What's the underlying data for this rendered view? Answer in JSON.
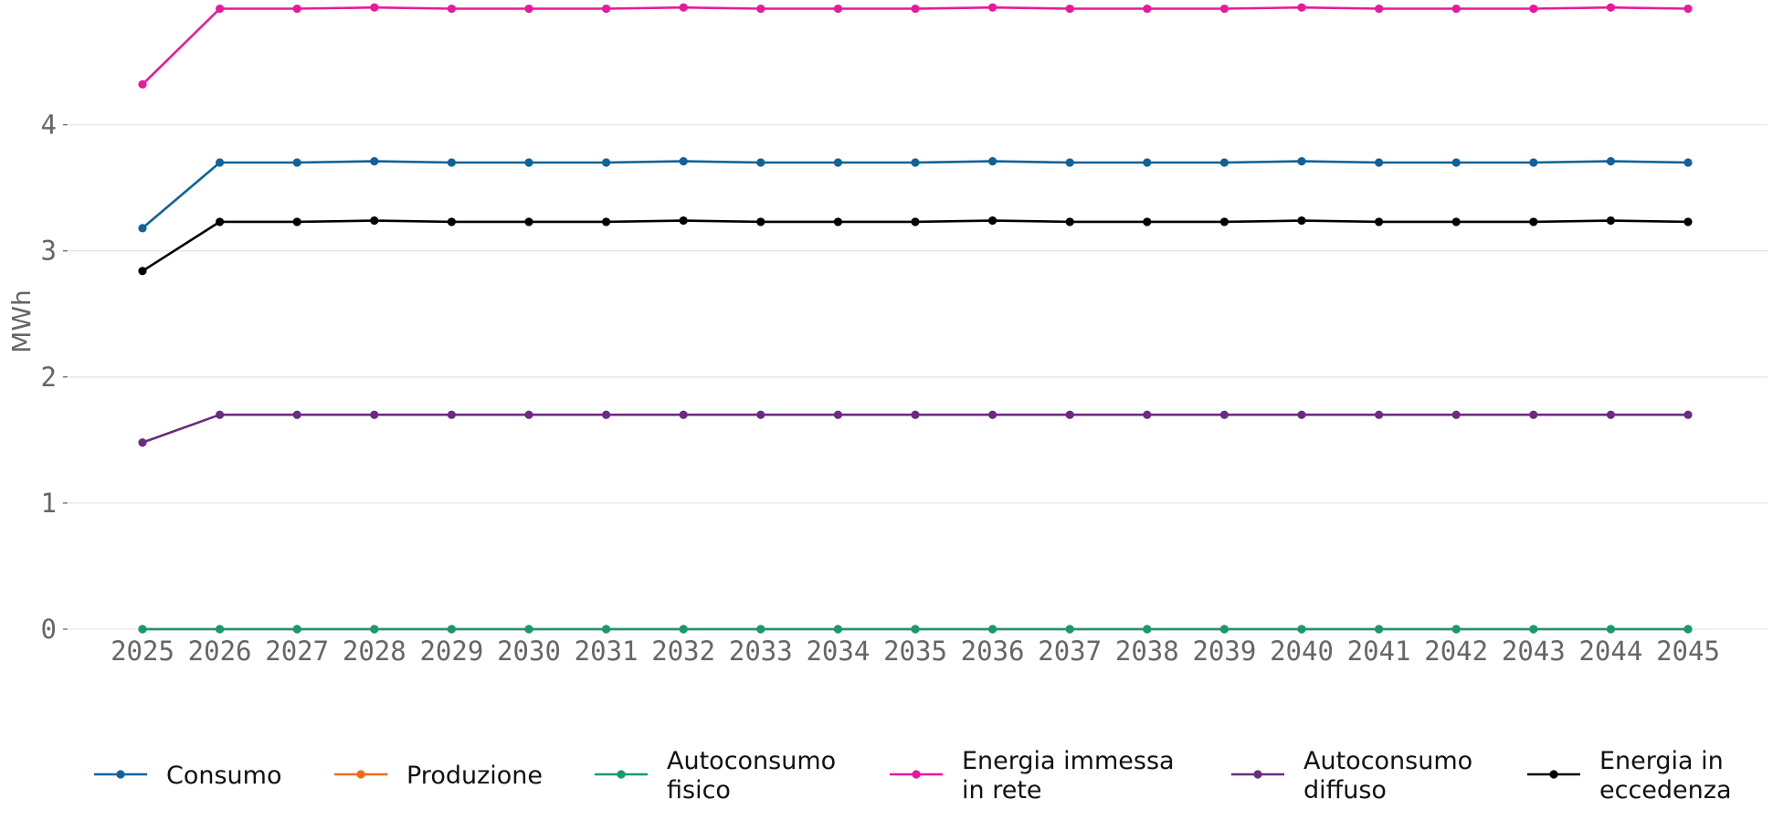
{
  "chart_data": {
    "type": "line",
    "title": "",
    "xlabel": "",
    "ylabel": "MWh",
    "ylim": [
      0,
      4.9
    ],
    "yticks": [
      0,
      1,
      2,
      3,
      4
    ],
    "grid": "horizontal",
    "legend_position": "bottom",
    "x": [
      "2025",
      "2026",
      "2027",
      "2028",
      "2029",
      "2030",
      "2031",
      "2032",
      "2033",
      "2034",
      "2035",
      "2036",
      "2037",
      "2038",
      "2039",
      "2040",
      "2041",
      "2042",
      "2043",
      "2044",
      "2045"
    ],
    "series": [
      {
        "name": "Consumo",
        "legend_lines": [
          "Consumo"
        ],
        "color": "#0f6398",
        "values": [
          3.18,
          3.7,
          3.7,
          3.71,
          3.7,
          3.7,
          3.7,
          3.71,
          3.7,
          3.7,
          3.7,
          3.71,
          3.7,
          3.7,
          3.7,
          3.71,
          3.7,
          3.7,
          3.7,
          3.71,
          3.7
        ]
      },
      {
        "name": "Produzione",
        "legend_lines": [
          "Produzione"
        ],
        "color": "#f26a1b",
        "values": [
          0,
          0,
          0,
          0,
          0,
          0,
          0,
          0,
          0,
          0,
          0,
          0,
          0,
          0,
          0,
          0,
          0,
          0,
          0,
          0,
          0
        ]
      },
      {
        "name": "Autoconsumo fisico",
        "legend_lines": [
          "Autoconsumo",
          "fisico"
        ],
        "color": "#159a72",
        "values": [
          0,
          0,
          0,
          0,
          0,
          0,
          0,
          0,
          0,
          0,
          0,
          0,
          0,
          0,
          0,
          0,
          0,
          0,
          0,
          0,
          0
        ]
      },
      {
        "name": "Energia immessa in rete",
        "legend_lines": [
          "Energia immessa",
          "in rete"
        ],
        "color": "#e8199d",
        "values": [
          4.32,
          4.92,
          4.92,
          4.93,
          4.92,
          4.92,
          4.92,
          4.93,
          4.92,
          4.92,
          4.92,
          4.93,
          4.92,
          4.92,
          4.92,
          4.93,
          4.92,
          4.92,
          4.92,
          4.93,
          4.92
        ]
      },
      {
        "name": "Autoconsumo diffuso",
        "legend_lines": [
          "Autoconsumo",
          "diffuso"
        ],
        "color": "#6a2c80",
        "values": [
          1.48,
          1.7,
          1.7,
          1.7,
          1.7,
          1.7,
          1.7,
          1.7,
          1.7,
          1.7,
          1.7,
          1.7,
          1.7,
          1.7,
          1.7,
          1.7,
          1.7,
          1.7,
          1.7,
          1.7,
          1.7
        ]
      },
      {
        "name": "Energia in eccedenza",
        "legend_lines": [
          "Energia in",
          "eccedenza"
        ],
        "color": "#000000",
        "values": [
          2.84,
          3.23,
          3.23,
          3.24,
          3.23,
          3.23,
          3.23,
          3.24,
          3.23,
          3.23,
          3.23,
          3.24,
          3.23,
          3.23,
          3.23,
          3.24,
          3.23,
          3.23,
          3.23,
          3.24,
          3.23
        ]
      }
    ]
  }
}
